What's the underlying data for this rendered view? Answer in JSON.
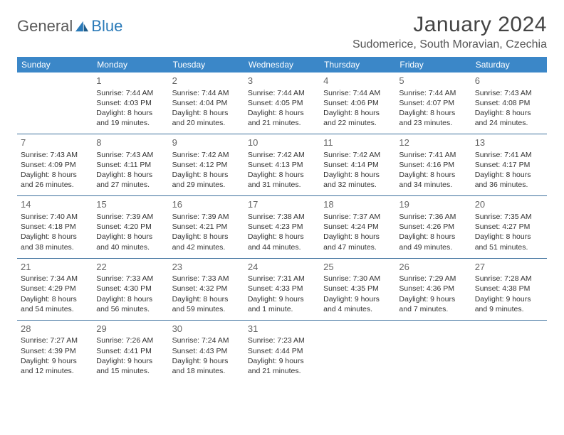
{
  "logo": {
    "part1": "General",
    "part2": "Blue"
  },
  "header": {
    "title": "January 2024",
    "location": "Sudomerice, South Moravian, Czechia"
  },
  "colors": {
    "header_bg": "#3b87c8",
    "header_text": "#ffffff",
    "row_border": "#3b6f9c",
    "logo_gray": "#5a5a5a",
    "logo_blue": "#2a7ab8",
    "text": "#333333"
  },
  "weekdays": [
    "Sunday",
    "Monday",
    "Tuesday",
    "Wednesday",
    "Thursday",
    "Friday",
    "Saturday"
  ],
  "weeks": [
    [
      {
        "day": "",
        "sunrise": "",
        "sunset": "",
        "daylight": ""
      },
      {
        "day": "1",
        "sunrise": "Sunrise: 7:44 AM",
        "sunset": "Sunset: 4:03 PM",
        "daylight": "Daylight: 8 hours and 19 minutes."
      },
      {
        "day": "2",
        "sunrise": "Sunrise: 7:44 AM",
        "sunset": "Sunset: 4:04 PM",
        "daylight": "Daylight: 8 hours and 20 minutes."
      },
      {
        "day": "3",
        "sunrise": "Sunrise: 7:44 AM",
        "sunset": "Sunset: 4:05 PM",
        "daylight": "Daylight: 8 hours and 21 minutes."
      },
      {
        "day": "4",
        "sunrise": "Sunrise: 7:44 AM",
        "sunset": "Sunset: 4:06 PM",
        "daylight": "Daylight: 8 hours and 22 minutes."
      },
      {
        "day": "5",
        "sunrise": "Sunrise: 7:44 AM",
        "sunset": "Sunset: 4:07 PM",
        "daylight": "Daylight: 8 hours and 23 minutes."
      },
      {
        "day": "6",
        "sunrise": "Sunrise: 7:43 AM",
        "sunset": "Sunset: 4:08 PM",
        "daylight": "Daylight: 8 hours and 24 minutes."
      }
    ],
    [
      {
        "day": "7",
        "sunrise": "Sunrise: 7:43 AM",
        "sunset": "Sunset: 4:09 PM",
        "daylight": "Daylight: 8 hours and 26 minutes."
      },
      {
        "day": "8",
        "sunrise": "Sunrise: 7:43 AM",
        "sunset": "Sunset: 4:11 PM",
        "daylight": "Daylight: 8 hours and 27 minutes."
      },
      {
        "day": "9",
        "sunrise": "Sunrise: 7:42 AM",
        "sunset": "Sunset: 4:12 PM",
        "daylight": "Daylight: 8 hours and 29 minutes."
      },
      {
        "day": "10",
        "sunrise": "Sunrise: 7:42 AM",
        "sunset": "Sunset: 4:13 PM",
        "daylight": "Daylight: 8 hours and 31 minutes."
      },
      {
        "day": "11",
        "sunrise": "Sunrise: 7:42 AM",
        "sunset": "Sunset: 4:14 PM",
        "daylight": "Daylight: 8 hours and 32 minutes."
      },
      {
        "day": "12",
        "sunrise": "Sunrise: 7:41 AM",
        "sunset": "Sunset: 4:16 PM",
        "daylight": "Daylight: 8 hours and 34 minutes."
      },
      {
        "day": "13",
        "sunrise": "Sunrise: 7:41 AM",
        "sunset": "Sunset: 4:17 PM",
        "daylight": "Daylight: 8 hours and 36 minutes."
      }
    ],
    [
      {
        "day": "14",
        "sunrise": "Sunrise: 7:40 AM",
        "sunset": "Sunset: 4:18 PM",
        "daylight": "Daylight: 8 hours and 38 minutes."
      },
      {
        "day": "15",
        "sunrise": "Sunrise: 7:39 AM",
        "sunset": "Sunset: 4:20 PM",
        "daylight": "Daylight: 8 hours and 40 minutes."
      },
      {
        "day": "16",
        "sunrise": "Sunrise: 7:39 AM",
        "sunset": "Sunset: 4:21 PM",
        "daylight": "Daylight: 8 hours and 42 minutes."
      },
      {
        "day": "17",
        "sunrise": "Sunrise: 7:38 AM",
        "sunset": "Sunset: 4:23 PM",
        "daylight": "Daylight: 8 hours and 44 minutes."
      },
      {
        "day": "18",
        "sunrise": "Sunrise: 7:37 AM",
        "sunset": "Sunset: 4:24 PM",
        "daylight": "Daylight: 8 hours and 47 minutes."
      },
      {
        "day": "19",
        "sunrise": "Sunrise: 7:36 AM",
        "sunset": "Sunset: 4:26 PM",
        "daylight": "Daylight: 8 hours and 49 minutes."
      },
      {
        "day": "20",
        "sunrise": "Sunrise: 7:35 AM",
        "sunset": "Sunset: 4:27 PM",
        "daylight": "Daylight: 8 hours and 51 minutes."
      }
    ],
    [
      {
        "day": "21",
        "sunrise": "Sunrise: 7:34 AM",
        "sunset": "Sunset: 4:29 PM",
        "daylight": "Daylight: 8 hours and 54 minutes."
      },
      {
        "day": "22",
        "sunrise": "Sunrise: 7:33 AM",
        "sunset": "Sunset: 4:30 PM",
        "daylight": "Daylight: 8 hours and 56 minutes."
      },
      {
        "day": "23",
        "sunrise": "Sunrise: 7:33 AM",
        "sunset": "Sunset: 4:32 PM",
        "daylight": "Daylight: 8 hours and 59 minutes."
      },
      {
        "day": "24",
        "sunrise": "Sunrise: 7:31 AM",
        "sunset": "Sunset: 4:33 PM",
        "daylight": "Daylight: 9 hours and 1 minute."
      },
      {
        "day": "25",
        "sunrise": "Sunrise: 7:30 AM",
        "sunset": "Sunset: 4:35 PM",
        "daylight": "Daylight: 9 hours and 4 minutes."
      },
      {
        "day": "26",
        "sunrise": "Sunrise: 7:29 AM",
        "sunset": "Sunset: 4:36 PM",
        "daylight": "Daylight: 9 hours and 7 minutes."
      },
      {
        "day": "27",
        "sunrise": "Sunrise: 7:28 AM",
        "sunset": "Sunset: 4:38 PM",
        "daylight": "Daylight: 9 hours and 9 minutes."
      }
    ],
    [
      {
        "day": "28",
        "sunrise": "Sunrise: 7:27 AM",
        "sunset": "Sunset: 4:39 PM",
        "daylight": "Daylight: 9 hours and 12 minutes."
      },
      {
        "day": "29",
        "sunrise": "Sunrise: 7:26 AM",
        "sunset": "Sunset: 4:41 PM",
        "daylight": "Daylight: 9 hours and 15 minutes."
      },
      {
        "day": "30",
        "sunrise": "Sunrise: 7:24 AM",
        "sunset": "Sunset: 4:43 PM",
        "daylight": "Daylight: 9 hours and 18 minutes."
      },
      {
        "day": "31",
        "sunrise": "Sunrise: 7:23 AM",
        "sunset": "Sunset: 4:44 PM",
        "daylight": "Daylight: 9 hours and 21 minutes."
      },
      {
        "day": "",
        "sunrise": "",
        "sunset": "",
        "daylight": ""
      },
      {
        "day": "",
        "sunrise": "",
        "sunset": "",
        "daylight": ""
      },
      {
        "day": "",
        "sunrise": "",
        "sunset": "",
        "daylight": ""
      }
    ]
  ]
}
